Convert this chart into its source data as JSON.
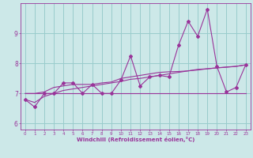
{
  "xlabel": "Windchill (Refroidissement éolien,°C)",
  "bg_color": "#cce8e8",
  "grid_color": "#99cccc",
  "line_color": "#993399",
  "x_data": [
    0,
    1,
    2,
    3,
    4,
    5,
    6,
    7,
    8,
    9,
    10,
    11,
    12,
    13,
    14,
    15,
    16,
    17,
    18,
    19,
    20,
    21,
    22,
    23
  ],
  "y_scatter": [
    6.8,
    6.55,
    7.0,
    7.0,
    7.35,
    7.35,
    7.0,
    7.3,
    7.0,
    7.0,
    7.45,
    8.25,
    7.25,
    7.55,
    7.6,
    7.55,
    8.6,
    9.4,
    8.9,
    9.8,
    7.9,
    7.05,
    7.2,
    7.95
  ],
  "y_smooth1": [
    6.8,
    6.7,
    6.9,
    7.0,
    7.1,
    7.15,
    7.2,
    7.25,
    7.3,
    7.35,
    7.4,
    7.47,
    7.5,
    7.55,
    7.6,
    7.65,
    7.7,
    7.75,
    7.8,
    7.82,
    7.85,
    7.88,
    7.9,
    7.95
  ],
  "y_smooth2": [
    7.0,
    7.0,
    7.05,
    7.2,
    7.25,
    7.3,
    7.3,
    7.3,
    7.35,
    7.38,
    7.5,
    7.55,
    7.6,
    7.65,
    7.7,
    7.72,
    7.73,
    7.75,
    7.78,
    7.82,
    7.85,
    7.87,
    7.9,
    7.95
  ],
  "y_flat": [
    7.0,
    7.0,
    7.0,
    7.0,
    7.0,
    7.0,
    7.0,
    7.0,
    7.0,
    7.0,
    7.0,
    7.0,
    7.0,
    7.0,
    7.0,
    7.0,
    7.0,
    7.0,
    7.0,
    7.0,
    7.0,
    7.0,
    7.0,
    7.0
  ],
  "ylim": [
    5.8,
    10.0
  ],
  "xlim": [
    -0.5,
    23.5
  ],
  "yticks": [
    6,
    7,
    8,
    9
  ],
  "xticks": [
    0,
    1,
    2,
    3,
    4,
    5,
    6,
    7,
    8,
    9,
    10,
    11,
    12,
    13,
    14,
    15,
    16,
    17,
    18,
    19,
    20,
    21,
    22,
    23
  ]
}
